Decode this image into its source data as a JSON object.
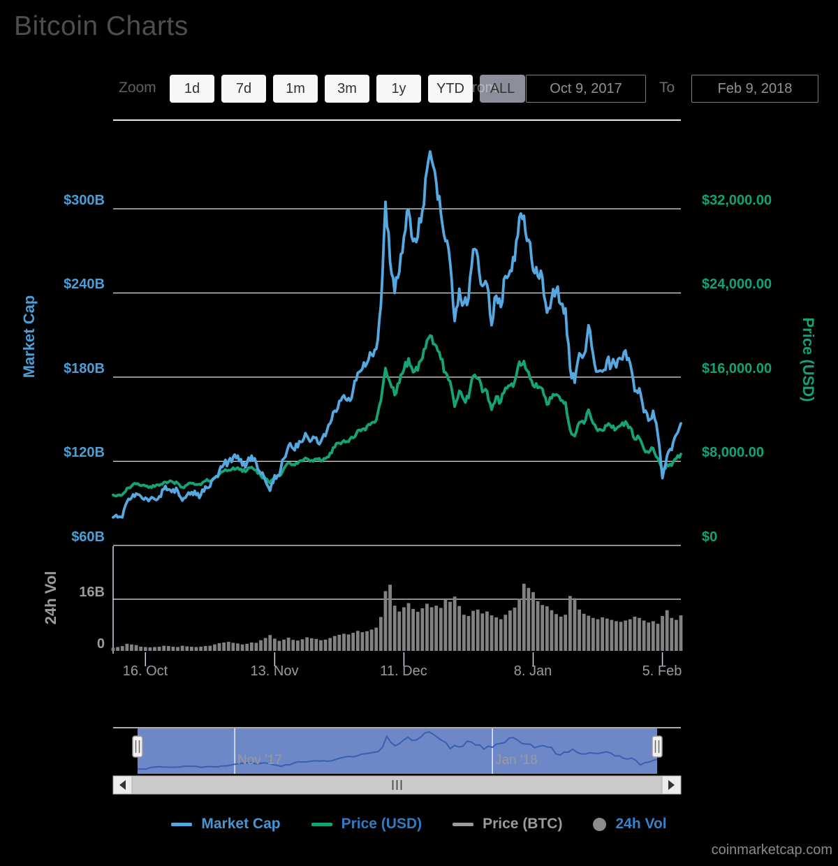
{
  "header": {
    "title": "Bitcoin Charts"
  },
  "toolbar": {
    "zoom_label": "Zoom",
    "buttons": [
      {
        "label": "1d",
        "selected": false
      },
      {
        "label": "7d",
        "selected": false
      },
      {
        "label": "1m",
        "selected": false
      },
      {
        "label": "3m",
        "selected": false
      },
      {
        "label": "1y",
        "selected": false
      },
      {
        "label": "YTD",
        "selected": false
      },
      {
        "label": "ALL",
        "selected": true
      }
    ],
    "from_label": "From",
    "from_value": "Oct 9, 2017",
    "to_label": "To",
    "to_value": "Feb 9, 2018"
  },
  "axes": {
    "market_cap": {
      "title": "Market Cap",
      "labels": [
        "$300B",
        "$240B",
        "$180B",
        "$120B",
        "$60B"
      ]
    },
    "price_usd": {
      "title": "Price (USD)",
      "labels": [
        "$32,000.00",
        "$24,000.00",
        "$16,000.00",
        "$8,000.00",
        "$0"
      ]
    },
    "volume": {
      "title": "24h Vol",
      "labels": [
        "16B",
        "0"
      ]
    },
    "x": {
      "labels": [
        "16. Oct",
        "13. Nov",
        "11. Dec",
        "8. Jan",
        "5. Feb"
      ]
    }
  },
  "navigator": {
    "labels": [
      "Nov '17",
      "Jan '18"
    ]
  },
  "legend": [
    {
      "label": "Market Cap",
      "swatch": "line",
      "color": "#55a8e0",
      "text_color": "#4596d2"
    },
    {
      "label": "Price (USD)",
      "swatch": "line",
      "color": "#14a478",
      "text_color": "#2e7cc4"
    },
    {
      "label": "Price (BTC)",
      "swatch": "line",
      "color": "#9b9b9b",
      "text_color": "#9b9b9b"
    },
    {
      "label": "24h Vol",
      "swatch": "circle",
      "color": "#8c8c8c",
      "text_color": "#3482c8"
    }
  ],
  "footer": {
    "watermark": "coinmarketcap.com"
  },
  "chart_data": {
    "type": "line+bar",
    "x_start": "2017-10-09",
    "x_end": "2018-02-09",
    "interval": "daily",
    "x_ticks": [
      "16. Oct",
      "13. Nov",
      "11. Dec",
      "8. Jan",
      "5. Feb"
    ],
    "navigator_labels": [
      "Nov '17",
      "Jan '18"
    ],
    "left_axis": {
      "title": "Market Cap",
      "unit": "USD billions",
      "ticks": [
        300,
        240,
        180,
        120,
        60
      ],
      "range": [
        60,
        363
      ]
    },
    "right_axis": {
      "title": "Price (USD)",
      "unit": "USD",
      "ticks": [
        32000,
        24000,
        16000,
        8000,
        0
      ],
      "range": [
        0,
        40300
      ]
    },
    "volume_axis": {
      "title": "24h Vol",
      "unit": "USD billions",
      "ticks": [
        16,
        0
      ],
      "range": [
        0,
        32
      ]
    },
    "series": [
      {
        "name": "Market Cap",
        "type": "line",
        "axis": "left",
        "color": "#55a8e0",
        "values": [
          80,
          80,
          80,
          91,
          94,
          97,
          95,
          94,
          93,
          93,
          95,
          100,
          100,
          100,
          99,
          92,
          96,
          98,
          96,
          96,
          102,
          102,
          108,
          113,
          118,
          120,
          123,
          124,
          117,
          119,
          124,
          119,
          111,
          106,
          99,
          110,
          110,
          122,
          131,
          129,
          130,
          134,
          138,
          135,
          137,
          134,
          138,
          147,
          156,
          163,
          167,
          165,
          171,
          183,
          186,
          190,
          196,
          200,
          231,
          305,
          262,
          240,
          255,
          280,
          299,
          277,
          280,
          299,
          328,
          335,
          319,
          297,
          277,
          262,
          220,
          243,
          233,
          236,
          271,
          266,
          245,
          246,
          217,
          238,
          230,
          252,
          256,
          263,
          294,
          295,
          278,
          256,
          252,
          251,
          226,
          236,
          242,
          232,
          229,
          186,
          176,
          197,
          196,
          217,
          196,
          184,
          184,
          192,
          189,
          187,
          193,
          199,
          190,
          170,
          172,
          155,
          149,
          156,
          139,
          108,
          124,
          128,
          139,
          147
        ]
      },
      {
        "name": "Price (USD)",
        "type": "line",
        "axis": "right",
        "color": "#14a478",
        "values": [
          4800,
          4780,
          4830,
          5440,
          5640,
          5840,
          5680,
          5640,
          5600,
          5590,
          5700,
          6010,
          6030,
          6000,
          5930,
          5530,
          5750,
          5900,
          5780,
          5770,
          6130,
          6130,
          6470,
          6750,
          7080,
          7160,
          7380,
          7400,
          7020,
          7150,
          7450,
          7150,
          6620,
          6350,
          5950,
          6560,
          6600,
          7310,
          7870,
          7710,
          7780,
          8040,
          8250,
          8100,
          8230,
          8010,
          8250,
          8790,
          9330,
          9730,
          9980,
          9850,
          10230,
          10920,
          11070,
          11330,
          11660,
          11920,
          13750,
          16860,
          15500,
          14300,
          15450,
          16700,
          17780,
          16470,
          16640,
          17780,
          19500,
          19900,
          18960,
          17700,
          16460,
          15600,
          13200,
          14700,
          13850,
          14020,
          16100,
          15840,
          14600,
          14660,
          12900,
          14160,
          13660,
          14980,
          15200,
          15600,
          17460,
          17530,
          16480,
          15170,
          14970,
          14900,
          13400,
          13980,
          14360,
          13770,
          13600,
          11000,
          10400,
          11700,
          11600,
          12900,
          11600,
          10900,
          10920,
          11400,
          11200,
          11100,
          11440,
          11790,
          11250,
          10100,
          10220,
          9170,
          8830,
          9240,
          8270,
          6950,
          7700,
          7590,
          8260,
          8690
        ]
      },
      {
        "name": "24h Vol",
        "type": "bar",
        "axis": "volume",
        "color": "#828282",
        "values": [
          1.0,
          1.2,
          1.5,
          2.2,
          2.0,
          1.8,
          1.3,
          1.2,
          1.1,
          1.2,
          1.3,
          1.6,
          1.5,
          1.3,
          1.2,
          1.6,
          1.4,
          1.3,
          1.2,
          1.3,
          1.5,
          1.6,
          2.0,
          2.4,
          2.6,
          2.8,
          2.5,
          2.3,
          2.0,
          2.2,
          2.6,
          2.5,
          3.3,
          4.0,
          4.9,
          3.8,
          3.1,
          3.5,
          4.1,
          3.4,
          3.2,
          3.6,
          4.2,
          3.9,
          3.7,
          3.3,
          3.5,
          4.0,
          4.6,
          5.0,
          5.3,
          5.1,
          5.6,
          6.2,
          5.8,
          6.1,
          6.6,
          7.2,
          10.5,
          18.5,
          20.5,
          14.0,
          12.2,
          13.5,
          14.8,
          13.0,
          12.1,
          13.2,
          14.6,
          13.5,
          14.0,
          13.3,
          16.0,
          15.2,
          16.8,
          13.9,
          11.2,
          10.8,
          12.4,
          12.8,
          11.6,
          12.2,
          11.0,
          10.4,
          9.8,
          11.2,
          12.5,
          13.4,
          16.2,
          20.8,
          19.5,
          18.2,
          15.4,
          14.2,
          13.8,
          12.6,
          11.4,
          10.6,
          11.2,
          17.0,
          16.3,
          12.8,
          11.5,
          10.9,
          10.2,
          9.8,
          10.4,
          10.0,
          9.6,
          9.2,
          9.0,
          9.4,
          9.8,
          10.6,
          10.2,
          9.4,
          8.8,
          9.2,
          8.4,
          10.8,
          12.6,
          10.2,
          9.6,
          11.0
        ]
      }
    ]
  }
}
